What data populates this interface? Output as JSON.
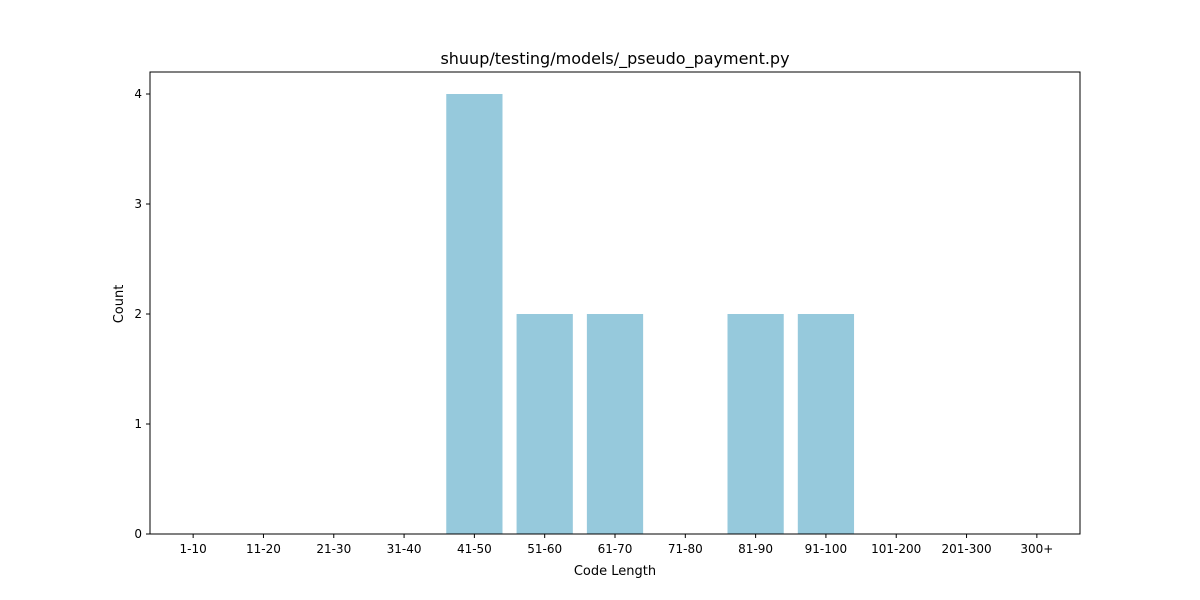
{
  "chart_data": {
    "type": "bar",
    "title": "shuup/testing/models/_pseudo_payment.py",
    "xlabel": "Code Length",
    "ylabel": "Count",
    "categories": [
      "1-10",
      "11-20",
      "21-30",
      "31-40",
      "41-50",
      "51-60",
      "61-70",
      "71-80",
      "81-90",
      "91-100",
      "101-200",
      "201-300",
      "300+"
    ],
    "values": [
      0,
      0,
      0,
      0,
      4,
      2,
      2,
      0,
      2,
      2,
      0,
      0,
      0
    ],
    "ylim": [
      0,
      4.2
    ],
    "yticks": [
      0,
      1,
      2,
      3,
      4
    ],
    "bar_color": "#96c9dc",
    "grid": false,
    "legend": "none"
  }
}
